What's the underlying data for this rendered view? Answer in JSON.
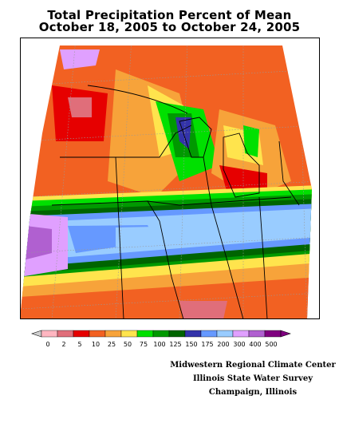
{
  "title_line1": "Total Precipitation Percent of Mean",
  "title_line2": "October 18, 2005 to October 24, 2005",
  "legend": {
    "colors": [
      "#ffb6c1",
      "#e06e7a",
      "#e60000",
      "#f26122",
      "#f7a33a",
      "#ffe44d",
      "#00e000",
      "#009900",
      "#006400",
      "#3333aa",
      "#6699ff",
      "#99ccff",
      "#e0a0ff",
      "#b060d0",
      "#800080"
    ],
    "labels": [
      "0",
      "2",
      "5",
      "10",
      "25",
      "50",
      "75",
      "100",
      "125",
      "150",
      "175",
      "200",
      "300",
      "400",
      "500"
    ]
  },
  "credits": {
    "line1": "Midwestern Regional Climate Center",
    "line2": "Illinois State Water Survey",
    "line3": "Champaign, Illinois"
  }
}
